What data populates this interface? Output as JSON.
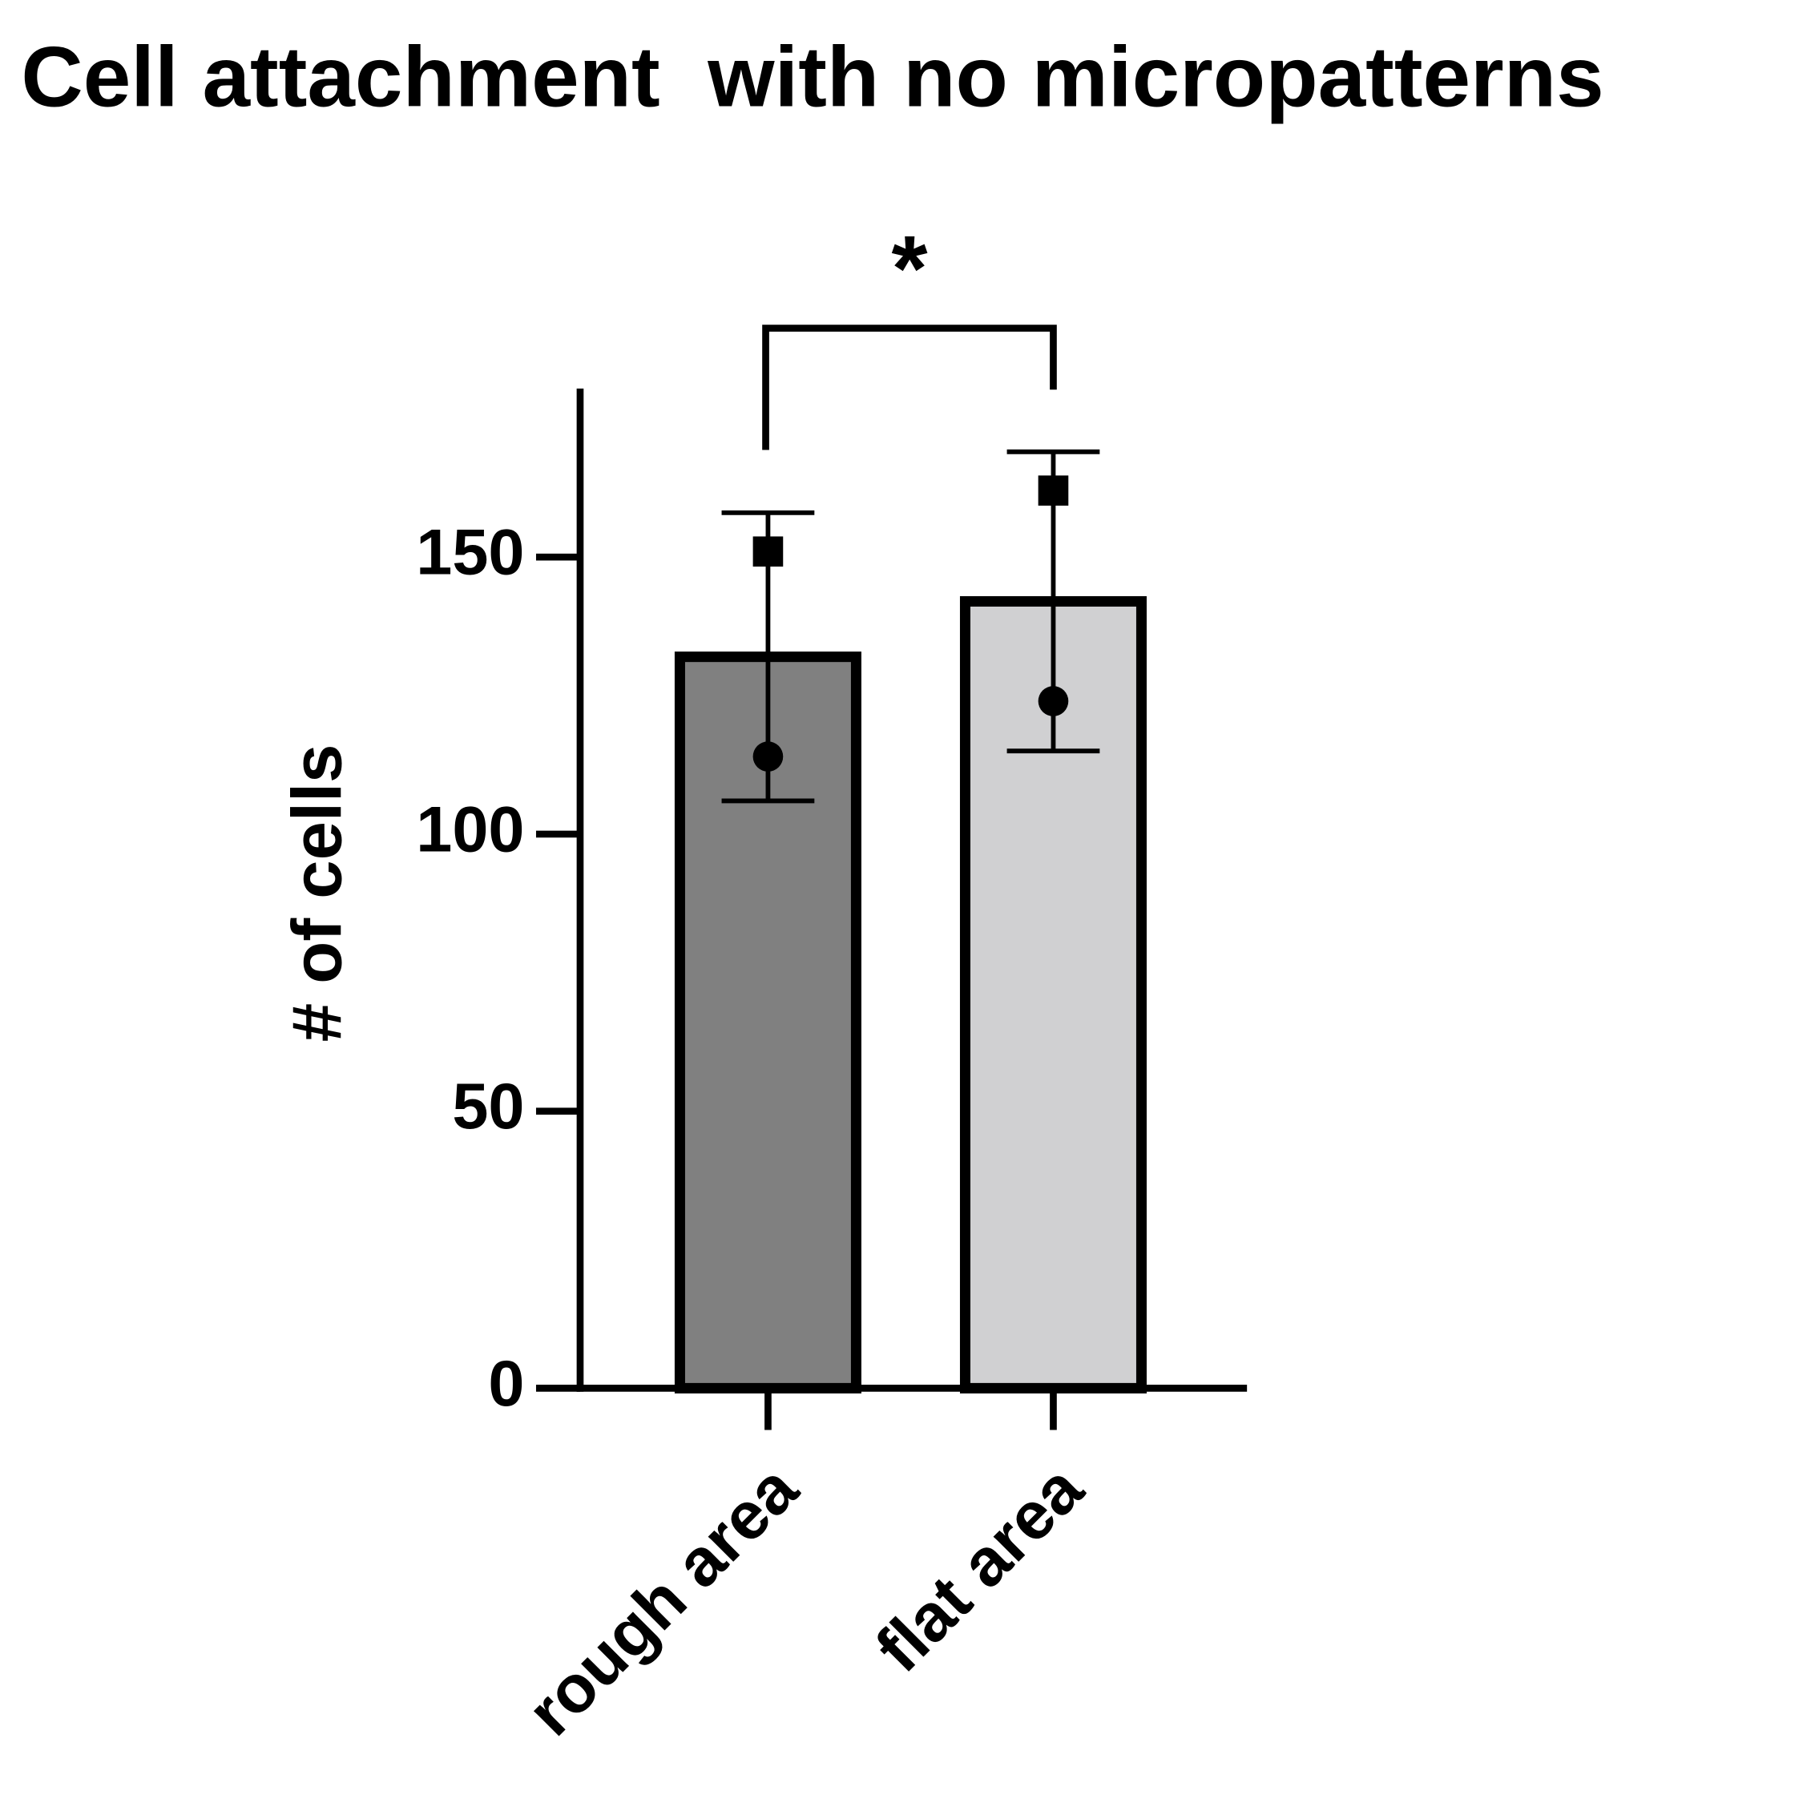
{
  "chart_data": {
    "type": "bar",
    "title": "Cell attachment  with no micropatterns",
    "y_label": "# of cells",
    "categories": [
      "rough area",
      "flat area"
    ],
    "values": [
      132,
      142
    ],
    "errors": [
      26,
      27
    ],
    "colors": [
      "#808080",
      "#d0d0d2"
    ],
    "points": [
      {
        "marker": "square",
        "values": [
          151,
          162
        ]
      },
      {
        "marker": "circle",
        "values": [
          114,
          124
        ]
      }
    ],
    "significance": "*",
    "ylim": [
      0,
      180
    ],
    "yticks": [
      0,
      50,
      100,
      150
    ]
  }
}
